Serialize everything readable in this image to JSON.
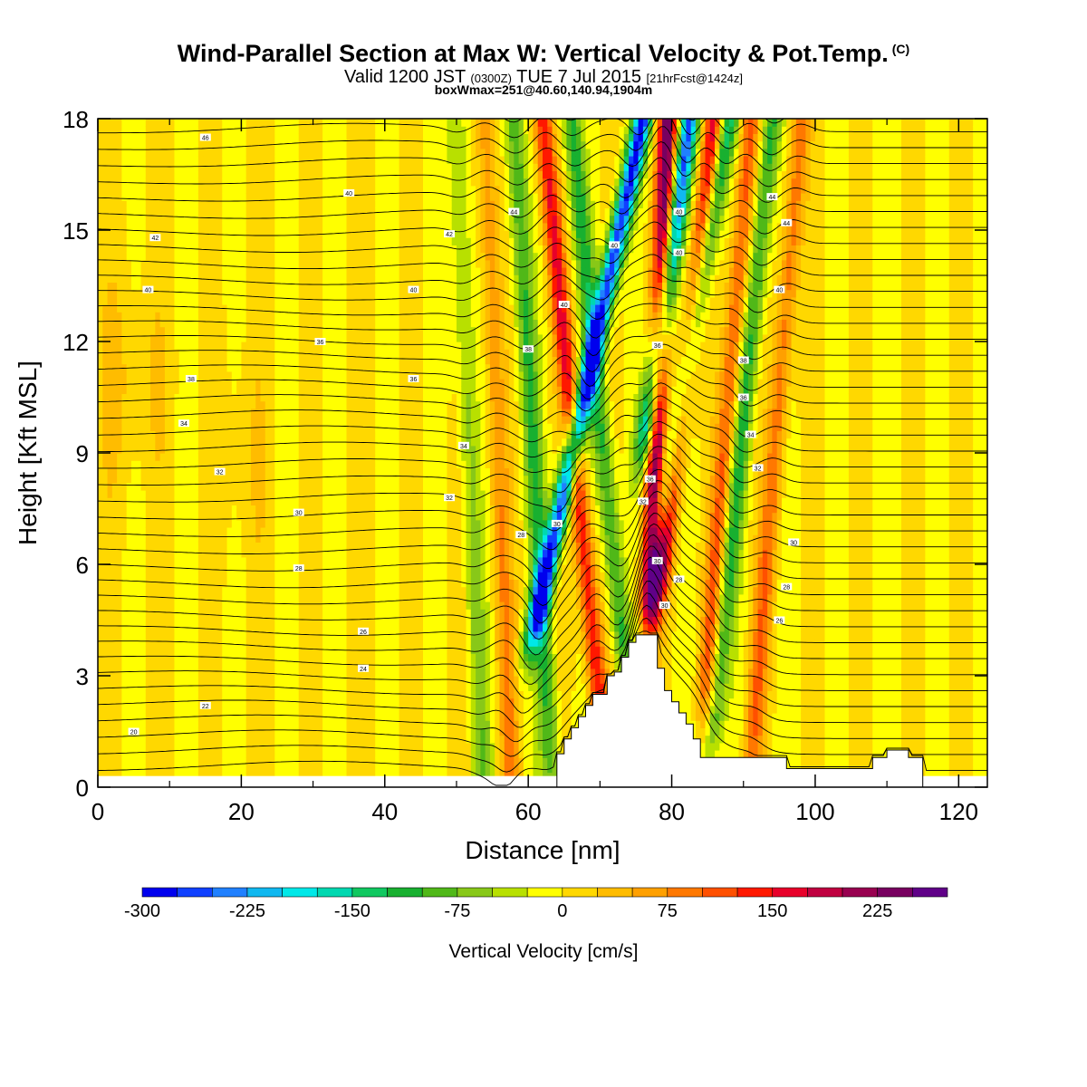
{
  "header": {
    "title": "Wind-Parallel Section at Max W: Vertical Velocity & Pot.Temp.",
    "copyright": "(C)",
    "valid_prefix": "Valid 1200 JST",
    "valid_utc": "(0300Z)",
    "valid_date": "TUE 7 Jul 2015",
    "forecast": "[21hrFcst@1424z]",
    "boxinfo": "boxWmax=251@40.60,140.94,1904m"
  },
  "chart_data": {
    "type": "heatmap",
    "title": "Wind-Parallel Section at Max W: Vertical Velocity & Pot.Temp.",
    "xlabel": "Distance [nm]",
    "ylabel": "Height [Kft MSL]",
    "xlim": [
      0,
      124
    ],
    "ylim": [
      0,
      18
    ],
    "x_ticks": [
      "0",
      "20",
      "40",
      "60",
      "80",
      "100",
      "120"
    ],
    "x_tick_values": [
      0,
      20,
      40,
      60,
      80,
      100,
      120
    ],
    "y_ticks": [
      "0",
      "3",
      "6",
      "9",
      "12",
      "15",
      "18"
    ],
    "y_tick_values": [
      0,
      3,
      6,
      9,
      12,
      15,
      18
    ],
    "colorbar": {
      "label": "Vertical Velocity [cm/s]",
      "ticks": [
        "-300",
        "-225",
        "-150",
        "-75",
        "0",
        "75",
        "150",
        "225"
      ],
      "tick_values": [
        -300,
        -225,
        -150,
        -75,
        0,
        75,
        150,
        225
      ],
      "min": -300,
      "max": 275,
      "step": 25,
      "colors": [
        "#0000ee",
        "#1040ff",
        "#2080ff",
        "#10b8f0",
        "#00e8e8",
        "#00d8b0",
        "#10c860",
        "#18b030",
        "#50b818",
        "#88c818",
        "#b8e000",
        "#ffff00",
        "#ffd800",
        "#ffbc00",
        "#ffa000",
        "#ff7800",
        "#ff5000",
        "#ff1800",
        "#e8002a",
        "#c00040",
        "#980050",
        "#780060",
        "#600088"
      ]
    },
    "terrain": {
      "x": [
        62,
        64,
        64,
        65,
        65,
        66,
        66,
        67,
        67,
        68,
        68,
        69,
        69,
        71,
        71,
        72,
        72,
        73,
        73,
        74,
        74,
        75,
        75,
        78,
        78,
        79,
        79,
        80,
        80,
        81,
        81,
        82,
        82,
        83,
        83,
        84,
        84,
        96,
        96,
        108,
        108,
        110,
        110,
        113,
        113,
        115,
        115
      ],
      "height": [
        0,
        0,
        0.9,
        0.9,
        1.3,
        1.3,
        1.6,
        1.6,
        1.9,
        1.9,
        2.2,
        2.2,
        2.5,
        2.5,
        3.0,
        3.0,
        3.1,
        3.1,
        3.5,
        3.5,
        3.9,
        3.9,
        4.1,
        4.1,
        3.2,
        3.2,
        2.6,
        2.6,
        2.3,
        2.3,
        2.0,
        2.0,
        1.7,
        1.7,
        1.3,
        1.3,
        0.8,
        0.8,
        0.5,
        0.5,
        0.8,
        0.8,
        1.0,
        1.0,
        0.8,
        0.8,
        0
      ]
    },
    "velocity_features": [
      {
        "x": 76,
        "z_top": 18,
        "z_bottom": 5,
        "tilt": 1.1,
        "w": -275
      },
      {
        "x": 79.5,
        "z_top": 18,
        "z_bottom": 5.5,
        "tilt": 0.2,
        "w": 250
      },
      {
        "x": 82.5,
        "z_top": 18,
        "z_bottom": 10,
        "tilt": 0.7,
        "w": -250
      },
      {
        "x": 86,
        "z_top": 18,
        "z_bottom": 6,
        "tilt": 0.6,
        "w": 160
      },
      {
        "x": 88,
        "z_top": 18,
        "z_bottom": 8,
        "tilt": 0.9,
        "w": -150
      },
      {
        "x": 91,
        "z_top": 18,
        "z_bottom": 3,
        "tilt": 0.4,
        "w": 110
      },
      {
        "x": 94,
        "z_top": 18,
        "z_bottom": 2,
        "tilt": 0.5,
        "w": -110
      },
      {
        "x": 98,
        "z_top": 18,
        "z_bottom": 1,
        "tilt": 0.4,
        "w": 90
      },
      {
        "x": 62,
        "z_top": 18,
        "z_bottom": 1,
        "tilt": -0.5,
        "w": 150
      },
      {
        "x": 66,
        "z_top": 18,
        "z_bottom": 4,
        "tilt": -0.5,
        "w": -110
      },
      {
        "x": 58,
        "z_top": 18,
        "z_bottom": 1,
        "tilt": -0.3,
        "w": -100
      },
      {
        "x": 54,
        "z_top": 18,
        "z_bottom": 0,
        "tilt": -0.2,
        "w": 70
      },
      {
        "x": 50,
        "z_top": 18,
        "z_bottom": 0,
        "tilt": -0.2,
        "w": -60
      }
    ],
    "contours": {
      "variable": "Potential temperature",
      "labels": [
        {
          "x": 15,
          "z": 17.5,
          "text": "46"
        },
        {
          "x": 35,
          "z": 16.0,
          "text": "40"
        },
        {
          "x": 8,
          "z": 14.8,
          "text": "42"
        },
        {
          "x": 7,
          "z": 13.4,
          "text": "40"
        },
        {
          "x": 44,
          "z": 13.4,
          "text": "40"
        },
        {
          "x": 31,
          "z": 12.0,
          "text": "36"
        },
        {
          "x": 13,
          "z": 11.0,
          "text": "38"
        },
        {
          "x": 44,
          "z": 11.0,
          "text": "36"
        },
        {
          "x": 12,
          "z": 9.8,
          "text": "34"
        },
        {
          "x": 17,
          "z": 8.5,
          "text": "32"
        },
        {
          "x": 51,
          "z": 9.2,
          "text": "34"
        },
        {
          "x": 28,
          "z": 7.4,
          "text": "30"
        },
        {
          "x": 49,
          "z": 7.8,
          "text": "32"
        },
        {
          "x": 28,
          "z": 5.9,
          "text": "28"
        },
        {
          "x": 59,
          "z": 6.8,
          "text": "28"
        },
        {
          "x": 64,
          "z": 7.1,
          "text": "30"
        },
        {
          "x": 37,
          "z": 4.2,
          "text": "26"
        },
        {
          "x": 37,
          "z": 3.2,
          "text": "24"
        },
        {
          "x": 15,
          "z": 2.2,
          "text": "22"
        },
        {
          "x": 5,
          "z": 1.5,
          "text": "20"
        },
        {
          "x": 49,
          "z": 14.9,
          "text": "42"
        },
        {
          "x": 58,
          "z": 15.5,
          "text": "44"
        },
        {
          "x": 72,
          "z": 14.6,
          "text": "40"
        },
        {
          "x": 65,
          "z": 13.0,
          "text": "40"
        },
        {
          "x": 60,
          "z": 11.8,
          "text": "38"
        },
        {
          "x": 78,
          "z": 11.9,
          "text": "36"
        },
        {
          "x": 81,
          "z": 15.5,
          "text": "40"
        },
        {
          "x": 81,
          "z": 14.4,
          "text": "40"
        },
        {
          "x": 94,
          "z": 15.9,
          "text": "44"
        },
        {
          "x": 96,
          "z": 15.2,
          "text": "44"
        },
        {
          "x": 95,
          "z": 13.4,
          "text": "40"
        },
        {
          "x": 90,
          "z": 11.5,
          "text": "38"
        },
        {
          "x": 90,
          "z": 10.5,
          "text": "36"
        },
        {
          "x": 91,
          "z": 9.5,
          "text": "34"
        },
        {
          "x": 92,
          "z": 8.6,
          "text": "32"
        },
        {
          "x": 97,
          "z": 6.6,
          "text": "30"
        },
        {
          "x": 96,
          "z": 5.4,
          "text": "28"
        },
        {
          "x": 95,
          "z": 4.5,
          "text": "26"
        },
        {
          "x": 77,
          "z": 8.3,
          "text": "36"
        },
        {
          "x": 76,
          "z": 7.7,
          "text": "32"
        },
        {
          "x": 78,
          "z": 6.1,
          "text": "30"
        },
        {
          "x": 81,
          "z": 5.6,
          "text": "28"
        },
        {
          "x": 79,
          "z": 4.9,
          "text": "30"
        }
      ]
    }
  }
}
